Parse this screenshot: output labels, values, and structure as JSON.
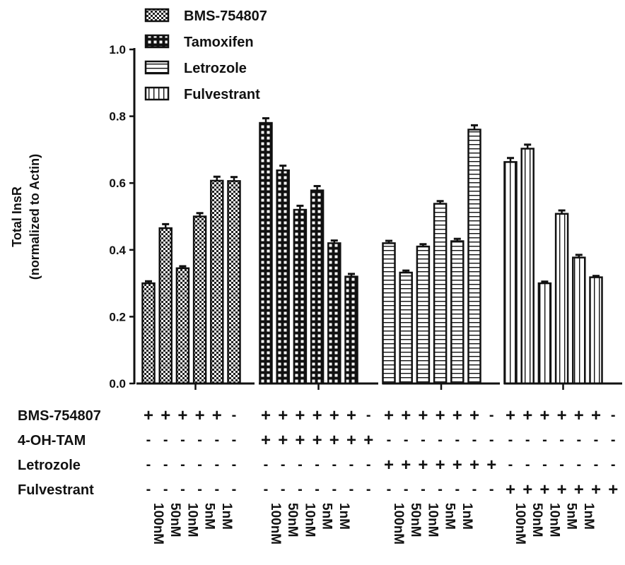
{
  "chart_data": {
    "type": "bar",
    "ylabel_line1": "Total InsR",
    "ylabel_line2": "(normalized to Actin)",
    "ylim": [
      0,
      1.0
    ],
    "yticks": [
      "0.0",
      "0.2",
      "0.4",
      "0.6",
      "0.8",
      "1.0"
    ],
    "ytick_values": [
      0,
      0.2,
      0.4,
      0.6,
      0.8,
      1.0
    ],
    "legend_position": "top-left",
    "legend": [
      {
        "label": "BMS-754807",
        "pattern": "checker"
      },
      {
        "label": "Tamoxifen",
        "pattern": "lattice"
      },
      {
        "label": "Letrozole",
        "pattern": "hlines"
      },
      {
        "label": "Fulvestrant",
        "pattern": "vlines"
      }
    ],
    "series": [
      {
        "pattern": "checker",
        "values": [
          0.3,
          0.465,
          0.345,
          0.5,
          0.607,
          0.606
        ],
        "errors": [
          0.006,
          0.012,
          0.006,
          0.01,
          0.012,
          0.012
        ]
      },
      {
        "pattern": "lattice",
        "values": [
          0.78,
          0.638,
          0.52,
          0.578,
          0.42,
          0.32,
          0
        ],
        "errors": [
          0.014,
          0.014,
          0.012,
          0.013,
          0.008,
          0.008,
          0
        ]
      },
      {
        "pattern": "hlines",
        "values": [
          0.42,
          0.332,
          0.41,
          0.538,
          0.426,
          0.76,
          0
        ],
        "errors": [
          0.007,
          0.006,
          0.007,
          0.008,
          0.007,
          0.013,
          0
        ]
      },
      {
        "pattern": "vlines",
        "values": [
          0.663,
          0.703,
          0.3,
          0.508,
          0.377,
          0.318,
          0
        ],
        "errors": [
          0.012,
          0.012,
          0.005,
          0.01,
          0.008,
          0.004,
          0
        ]
      }
    ],
    "treatment_rows": [
      {
        "label": "BMS-754807",
        "groups": [
          [
            "+",
            "+",
            "+",
            "+",
            "+",
            "-"
          ],
          [
            "+",
            "+",
            "+",
            "+",
            "+",
            "+",
            "-"
          ],
          [
            "+",
            "+",
            "+",
            "+",
            "+",
            "+",
            "-"
          ],
          [
            "+",
            "+",
            "+",
            "+",
            "+",
            "+",
            "-"
          ]
        ]
      },
      {
        "label": "4-OH-TAM",
        "groups": [
          [
            "-",
            "-",
            "-",
            "-",
            "-",
            "-"
          ],
          [
            "+",
            "+",
            "+",
            "+",
            "+",
            "+",
            "+"
          ],
          [
            "-",
            "-",
            "-",
            "-",
            "-",
            "-",
            "-"
          ],
          [
            "-",
            "-",
            "-",
            "-",
            "-",
            "-",
            "-"
          ]
        ]
      },
      {
        "label": "Letrozole",
        "groups": [
          [
            "-",
            "-",
            "-",
            "-",
            "-",
            "-"
          ],
          [
            "-",
            "-",
            "-",
            "-",
            "-",
            "-",
            "-"
          ],
          [
            "+",
            "+",
            "+",
            "+",
            "+",
            "+",
            "+"
          ],
          [
            "-",
            "-",
            "-",
            "-",
            "-",
            "-",
            "-"
          ]
        ]
      },
      {
        "label": "Fulvestrant",
        "groups": [
          [
            "-",
            "-",
            "-",
            "-",
            "-",
            "-"
          ],
          [
            "-",
            "-",
            "-",
            "-",
            "-",
            "-",
            "-"
          ],
          [
            "-",
            "-",
            "-",
            "-",
            "-",
            "-",
            "-"
          ],
          [
            "+",
            "+",
            "+",
            "+",
            "+",
            "+",
            "+"
          ]
        ]
      }
    ],
    "dose_labels": [
      [
        "100nM",
        "50nM",
        "10nM",
        "5nM",
        "1nM"
      ],
      [
        "100nM",
        "50nM",
        "10nM",
        "5nM",
        "1nM"
      ],
      [
        "100nM",
        "50nM",
        "10nM",
        "5nM",
        "1nM"
      ],
      [
        "100nM",
        "50nM",
        "10nM",
        "5nM",
        "1nM"
      ]
    ]
  }
}
